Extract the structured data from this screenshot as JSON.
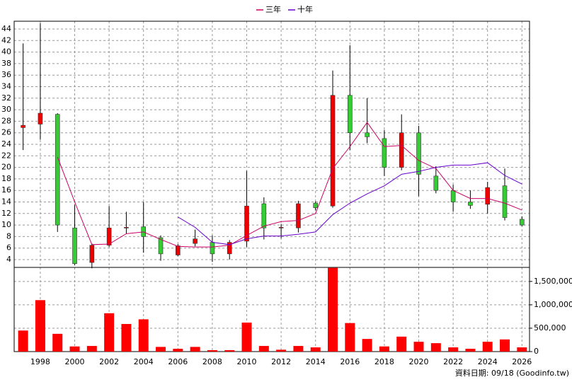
{
  "chart_data": [
    {
      "type": "candlestick",
      "x": [
        1997,
        1998,
        1999,
        2000,
        2001,
        2002,
        2003,
        2004,
        2005,
        2006,
        2007,
        2008,
        2009,
        2010,
        2011,
        2012,
        2013,
        2014,
        2015,
        2016,
        2017,
        2018,
        2019,
        2020,
        2021,
        2022,
        2023,
        2024,
        2025,
        2026
      ],
      "open": [
        26.9,
        27.5,
        29.2,
        9.5,
        3.5,
        6.5,
        9.5,
        9.7,
        7.8,
        4.8,
        6.8,
        7.0,
        5.0,
        7.2,
        13.7,
        9.5,
        9.5,
        13.8,
        13.3,
        32.5,
        26.0,
        25.0,
        20.0,
        26.0,
        18.5,
        16.0,
        14.0,
        13.6,
        16.8,
        11.0
      ],
      "high": [
        41.5,
        45.0,
        29.4,
        13.5,
        6.8,
        13.3,
        12.3,
        14.0,
        8.2,
        6.7,
        9.2,
        8.2,
        7.4,
        19.4,
        14.8,
        10.2,
        14.2,
        14.1,
        36.8,
        41.2,
        32.0,
        26.5,
        29.2,
        27.2,
        20.2,
        17.0,
        16.0,
        17.5,
        19.8,
        11.5
      ],
      "low": [
        23.0,
        24.8,
        8.8,
        3.0,
        2.5,
        6.2,
        8.5,
        5.2,
        3.8,
        4.6,
        6.3,
        3.6,
        4.0,
        6.2,
        7.5,
        7.7,
        8.7,
        12.5,
        13.0,
        23.0,
        24.2,
        18.5,
        19.5,
        15.0,
        15.5,
        12.3,
        12.8,
        12.0,
        10.8,
        9.8
      ],
      "close": [
        27.3,
        29.4,
        10.0,
        3.3,
        6.5,
        9.5,
        9.6,
        8.0,
        5.0,
        6.4,
        7.6,
        5.0,
        7.0,
        13.3,
        9.5,
        9.6,
        13.7,
        13.0,
        32.5,
        26.0,
        25.3,
        20.0,
        26.0,
        18.8,
        16.0,
        14.0,
        13.4,
        16.5,
        11.3,
        10.0
      ],
      "up_color": "#ee0000",
      "down_color": "#33cc33",
      "series": [
        {
          "name": "三年",
          "color": "#cc0066",
          "values": [
            null,
            null,
            21.8,
            14.0,
            6.6,
            6.7,
            8.5,
            8.8,
            7.5,
            6.3,
            6.2,
            6.2,
            6.5,
            8.2,
            9.8,
            10.6,
            10.8,
            12.0,
            19.8,
            23.6,
            27.8,
            23.6,
            23.8,
            21.2,
            19.8,
            16.0,
            14.6,
            14.6,
            13.8,
            12.6
          ]
        },
        {
          "name": "十年",
          "color": "#6600cc",
          "values": [
            null,
            null,
            null,
            null,
            null,
            null,
            null,
            null,
            null,
            11.4,
            9.6,
            7.0,
            6.6,
            7.6,
            8.1,
            8.1,
            8.4,
            8.8,
            11.8,
            13.8,
            15.4,
            16.8,
            18.8,
            19.3,
            20.0,
            20.4,
            20.4,
            20.8,
            18.6,
            17.1
          ]
        }
      ],
      "xlim": [
        1996.48,
        2026.44
      ],
      "ylim": [
        2.65,
        45.35
      ],
      "yticks": [
        4,
        6,
        8,
        10,
        12,
        14,
        16,
        18,
        20,
        22,
        24,
        26,
        28,
        30,
        32,
        34,
        36,
        38,
        40,
        42,
        44
      ],
      "grid": true,
      "legend": "top"
    },
    {
      "type": "bar",
      "x": [
        1997,
        1998,
        1999,
        2000,
        2001,
        2002,
        2003,
        2004,
        2005,
        2006,
        2007,
        2008,
        2009,
        2010,
        2011,
        2012,
        2013,
        2014,
        2015,
        2016,
        2017,
        2018,
        2019,
        2020,
        2021,
        2022,
        2023,
        2024,
        2025,
        2026
      ],
      "values": [
        450000,
        1100000,
        380000,
        110000,
        120000,
        820000,
        590000,
        690000,
        100000,
        60000,
        100000,
        30000,
        30000,
        620000,
        120000,
        40000,
        120000,
        90000,
        1790000,
        610000,
        270000,
        110000,
        320000,
        210000,
        180000,
        90000,
        60000,
        210000,
        260000,
        90000
      ],
      "color": "#ff0000",
      "xlim": [
        1996.48,
        2026.44
      ],
      "xticks": [
        1998,
        2000,
        2002,
        2004,
        2006,
        2008,
        2010,
        2012,
        2014,
        2016,
        2018,
        2020,
        2022,
        2024,
        2026
      ],
      "ylim": [
        0,
        1800000
      ],
      "yticks": [
        0,
        {
          "value": 500000,
          "label": "500,000"
        },
        {
          "value": 1000000,
          "label": "1,000,000"
        },
        {
          "value": 1500000,
          "label": "1,500,000"
        }
      ],
      "grid": true,
      "footnote": "資料日期: 09/18 (Goodinfo.tw)"
    }
  ]
}
